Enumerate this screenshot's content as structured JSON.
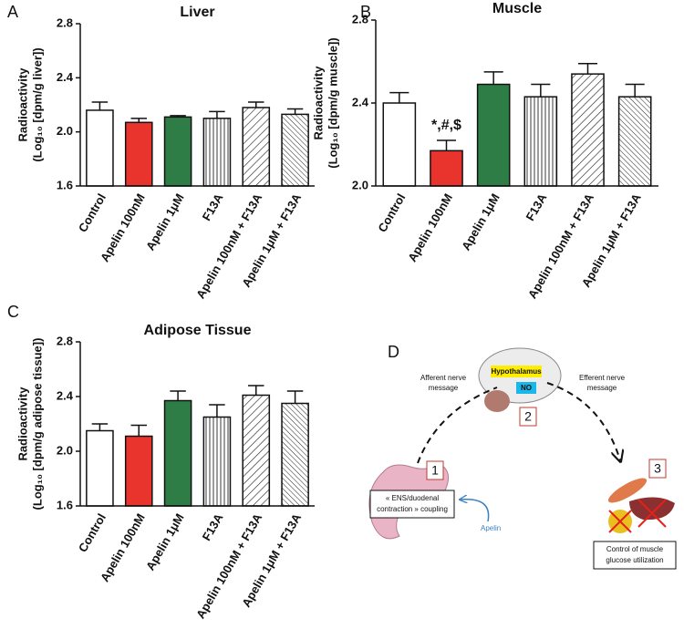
{
  "chart_data": [
    {
      "type": "bar",
      "panel": "A",
      "title": "Liver",
      "y_label": [
        "Radioactivity",
        "(Log₁₀ [dpm/g liver])"
      ],
      "categories": [
        "Control",
        "Apelin 100nM",
        "Apelin 1μM",
        "F13A",
        "Apelin 100nM + F13A",
        "Apelin 1μM + F13A"
      ],
      "values": [
        2.16,
        2.07,
        2.11,
        2.1,
        2.18,
        2.13
      ],
      "errors": [
        0.06,
        0.03,
        0.01,
        0.05,
        0.04,
        0.04
      ],
      "colors": [
        "#ffffff",
        "#e8342c",
        "#2f7d46",
        "#ffffff",
        "#ffffff",
        "#ffffff"
      ],
      "hatches": [
        "none",
        "none",
        "none",
        "vertical",
        "diagonal",
        "diagonal-dense"
      ],
      "ylim": [
        1.6,
        2.8
      ],
      "yticks": [
        1.6,
        {
          "value": 2,
          "label": "2.0"
        },
        2.4,
        2.8
      ]
    },
    {
      "type": "bar",
      "panel": "B",
      "title": "Muscle",
      "y_label": [
        "Radioactivity",
        "(Log₁₀ [dpm/g muscle])"
      ],
      "categories": [
        "Control",
        "Apelin 100nM",
        "Apelin 1μM",
        "F13A",
        "Apelin 100nM + F13A",
        "Apelin 1μM + F13A"
      ],
      "values": [
        2.4,
        2.17,
        2.49,
        2.43,
        2.54,
        2.43
      ],
      "errors": [
        0.05,
        0.05,
        0.06,
        0.06,
        0.05,
        0.06
      ],
      "colors": [
        "#ffffff",
        "#e8342c",
        "#2f7d46",
        "#ffffff",
        "#ffffff",
        "#ffffff"
      ],
      "hatches": [
        "none",
        "none",
        "none",
        "vertical",
        "diagonal",
        "diagonal-dense"
      ],
      "annotation": "*,#,$",
      "ylim": [
        2.0,
        2.8
      ],
      "yticks": [
        {
          "value": 2,
          "label": "2.0"
        },
        2.4,
        2.8
      ]
    },
    {
      "type": "bar",
      "panel": "C",
      "title": "Adipose  Tissue",
      "y_label": [
        "Radioactivity",
        "(Log₁₀ [dpm/g adipose tissue])"
      ],
      "categories": [
        "Control",
        "Apelin 100nM",
        "Apelin 1μM",
        "F13A",
        "Apelin 100nM + F13A",
        "Apelin 1μM + F13A"
      ],
      "values": [
        2.15,
        2.11,
        2.37,
        2.25,
        2.41,
        2.35
      ],
      "errors": [
        0.05,
        0.08,
        0.07,
        0.09,
        0.07,
        0.09
      ],
      "colors": [
        "#ffffff",
        "#e8342c",
        "#2f7d46",
        "#ffffff",
        "#ffffff",
        "#ffffff"
      ],
      "hatches": [
        "none",
        "none",
        "none",
        "vertical",
        "diagonal",
        "diagonal-dense"
      ],
      "ylim": [
        1.6,
        2.8
      ],
      "yticks": [
        1.6,
        {
          "value": 2,
          "label": "2.0"
        },
        2.4,
        2.8
      ]
    }
  ],
  "diagram": {
    "panel": "D",
    "hypothalamus": "Hypothalamus",
    "no": "NO",
    "step_2": "2",
    "step_1": "1",
    "step_3": "3",
    "afferent": [
      "Afferent nerve",
      "message"
    ],
    "efferent": [
      "Efferent nerve",
      "message"
    ],
    "coupling": [
      "« ENS/duodenal",
      "contraction » coupling"
    ],
    "apelin": "Apelin",
    "control": [
      "Control of muscle",
      "glucose utilization"
    ]
  }
}
